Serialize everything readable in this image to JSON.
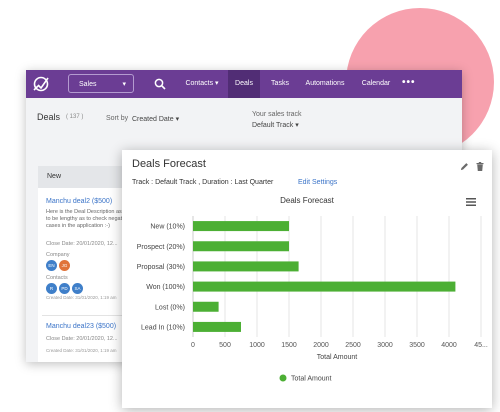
{
  "topbar": {
    "sales_select": "Sales",
    "nav": [
      {
        "label": "Contacts",
        "has_dropdown": true,
        "active": false
      },
      {
        "label": "Deals",
        "active": true
      },
      {
        "label": "Tasks",
        "active": false
      },
      {
        "label": "Automations",
        "active": false
      },
      {
        "label": "Calendar",
        "active": false
      }
    ],
    "more": "•••",
    "bg_color": "#6b3d94",
    "active_color": "#512d75"
  },
  "page": {
    "title": "Deals",
    "count": "( 137 )",
    "sort_label": "Sort by",
    "sort_value": "Created Date",
    "sales_track_label": "Your sales track",
    "sales_track_value": "Default Track"
  },
  "column": {
    "title": "New",
    "cards": [
      {
        "title": "Manchu deal2 ($500)",
        "description": "Here is the Deal Description as it has to be lengthy as to check negative test cases in the application :-)",
        "close_date": "Close Date: 20/01/2020, 12...",
        "company_label": "Company",
        "company_avatars": [
          {
            "initials": "EN",
            "color": "#3f7fc9"
          },
          {
            "initials": "JG",
            "color": "#e0733a"
          }
        ],
        "contacts_label": "Contacts",
        "contact_avatars": [
          {
            "initials": "R",
            "color": "#3f7fc9"
          },
          {
            "initials": "PD",
            "color": "#3f7fc9"
          },
          {
            "initials": "SA",
            "color": "#3f7fc9"
          }
        ],
        "created": "Created Date: 31/01/2020, 1:19 am"
      },
      {
        "title": "Manchu deal23 ($500)",
        "close_date": "Close Date: 20/01/2020, 12...",
        "created": "Created Date: 31/01/2020, 1:19 am"
      }
    ]
  },
  "forecast": {
    "title": "Deals Forecast",
    "subtitle": "Track : Default Track ,  Duration : Last Quarter",
    "edit_link": "Edit Settings"
  },
  "chart_data": {
    "type": "bar",
    "orientation": "horizontal",
    "title": "Deals Forecast",
    "categories": [
      "New (10%)",
      "Prospect (20%)",
      "Proposal (30%)",
      "Won (100%)",
      "Lost (0%)",
      "Lead In (10%)"
    ],
    "series": [
      {
        "name": "Total Amount",
        "values": [
          1500,
          1500,
          1650,
          4100,
          400,
          750
        ]
      }
    ],
    "xlabel": "Total Amount",
    "ylabel": "",
    "xlim": [
      0,
      4500
    ],
    "x_ticks": [
      "0",
      "500",
      "1000",
      "1500",
      "2000",
      "2500",
      "3000",
      "3500",
      "4000",
      "45..."
    ],
    "grid": true,
    "legend": "bottom",
    "bar_color": "#4caf34"
  }
}
